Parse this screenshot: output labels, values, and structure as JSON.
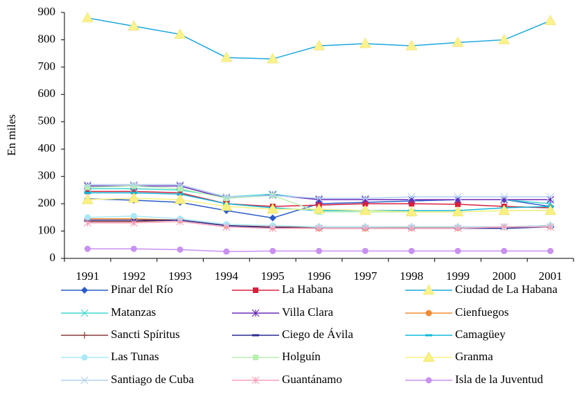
{
  "chart_data": {
    "type": "line",
    "y_label": "En miles",
    "categories": [
      "1991",
      "1992",
      "1993",
      "1994",
      "1995",
      "1996",
      "1997",
      "1998",
      "1999",
      "2000",
      "2001"
    ],
    "ylim": [
      0,
      900
    ],
    "yticks": [
      0,
      100,
      200,
      300,
      400,
      500,
      600,
      700,
      800,
      900
    ],
    "grid": false,
    "series": [
      {
        "name": "Pinar del Río",
        "color": "#2a5cc8",
        "marker": "diamond",
        "values": [
          218,
          213,
          205,
          175,
          148,
          200,
          205,
          210,
          215,
          215,
          190
        ]
      },
      {
        "name": "La Habana",
        "color": "#d8203c",
        "marker": "square",
        "values": [
          245,
          245,
          240,
          200,
          190,
          195,
          200,
          200,
          198,
          190,
          185
        ]
      },
      {
        "name": "Ciudad de La Habana",
        "color": "#1aa8dc",
        "marker": "triangle",
        "marker_color": "#fbf28c",
        "values": [
          880,
          850,
          820,
          735,
          730,
          778,
          786,
          778,
          790,
          800,
          870
        ]
      },
      {
        "name": "Matanzas",
        "color": "#40d8d0",
        "marker": "x",
        "values": [
          255,
          255,
          250,
          225,
          235,
          215,
          215,
          215,
          215,
          215,
          200
        ]
      },
      {
        "name": "Villa Clara",
        "color": "#6a2ab8",
        "marker": "asterisk",
        "values": [
          265,
          265,
          265,
          220,
          232,
          215,
          215,
          215,
          215,
          215,
          215
        ]
      },
      {
        "name": "Cienfuegos",
        "color": "#f08a30",
        "marker": "circle",
        "values": [
          145,
          145,
          140,
          120,
          115,
          110,
          110,
          112,
          112,
          115,
          118
        ]
      },
      {
        "name": "Sancti Spíritus",
        "color": "#8a3a3a",
        "marker": "plus",
        "values": [
          135,
          135,
          140,
          120,
          115,
          115,
          115,
          115,
          115,
          115,
          120
        ]
      },
      {
        "name": "Ciego de Ávila",
        "color": "#2a2a90",
        "marker": "dash",
        "values": [
          140,
          140,
          140,
          120,
          112,
          110,
          110,
          110,
          110,
          110,
          115
        ]
      },
      {
        "name": "Camagüey",
        "color": "#10b8d8",
        "marker": "dash",
        "values": [
          240,
          240,
          235,
          200,
          185,
          175,
          175,
          175,
          175,
          185,
          190
        ]
      },
      {
        "name": "Las Tunas",
        "color": "#a8e8f8",
        "marker": "circle",
        "values": [
          150,
          155,
          145,
          125,
          120,
          115,
          115,
          115,
          115,
          115,
          120
        ]
      },
      {
        "name": "Holguín",
        "color": "#b8f0b0",
        "marker": "square",
        "values": [
          260,
          265,
          255,
          220,
          230,
          170,
          170,
          170,
          170,
          175,
          175
        ]
      },
      {
        "name": "Granma",
        "color": "#f8f080",
        "marker": "triangle",
        "values": [
          215,
          220,
          215,
          190,
          180,
          180,
          175,
          170,
          170,
          175,
          175
        ]
      },
      {
        "name": "Santiago de Cuba",
        "color": "#b0d0f0",
        "marker": "x",
        "values": [
          270,
          270,
          270,
          225,
          230,
          220,
          220,
          225,
          225,
          225,
          225
        ]
      },
      {
        "name": "Guantánamo",
        "color": "#f8a0b8",
        "marker": "asterisk",
        "values": [
          130,
          130,
          135,
          115,
          110,
          110,
          110,
          110,
          110,
          115,
          115
        ]
      },
      {
        "name": "Isla de la Juventud",
        "color": "#c890f0",
        "marker": "circle",
        "values": [
          35,
          35,
          32,
          25,
          27,
          27,
          27,
          27,
          27,
          27,
          27
        ]
      }
    ]
  }
}
